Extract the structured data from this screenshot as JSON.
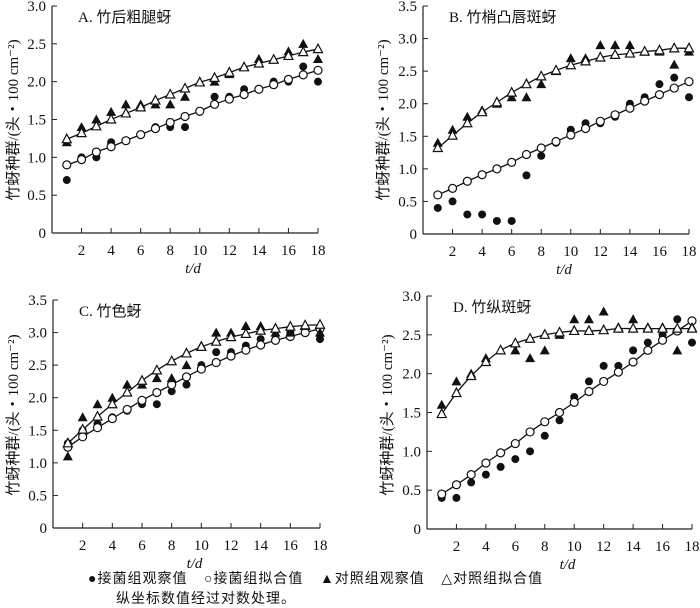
{
  "legend": {
    "items": [
      {
        "symbol": "●",
        "label": "接菌组观察值"
      },
      {
        "symbol": "○",
        "label": "接菌组拟合值"
      },
      {
        "symbol": "▲",
        "label": "对照组观察值"
      },
      {
        "symbol": "△",
        "label": "对照组拟合值"
      }
    ],
    "note": "纵坐标数值经过对数处理。"
  },
  "chart_data": [
    {
      "type": "scatter",
      "title": "A. 竹后粗腿蚜",
      "xlabel": "t/d",
      "ylabel": "竹蚜种群/(头・100 cm⁻²)",
      "xlim": [
        0,
        18
      ],
      "ylim": [
        0,
        3.0
      ],
      "xticks": [
        "2",
        "4",
        "6",
        "8",
        "10",
        "12",
        "14",
        "16",
        "18"
      ],
      "yticks": [
        "0",
        "0.5",
        "1.0",
        "1.5",
        "2.0",
        "2.5",
        "3.0"
      ],
      "x": [
        1,
        2,
        3,
        4,
        5,
        6,
        7,
        8,
        9,
        10,
        11,
        12,
        13,
        14,
        15,
        16,
        17,
        18
      ],
      "series": [
        {
          "name": "接菌组观察值",
          "marker": "filled-circle",
          "values": [
            0.7,
            1.0,
            1.0,
            1.2,
            1.22,
            1.3,
            1.4,
            1.4,
            1.4,
            1.6,
            1.8,
            1.8,
            1.9,
            1.9,
            2.0,
            2.0,
            2.2,
            2.0
          ]
        },
        {
          "name": "接菌组拟合值",
          "marker": "open-circle",
          "line": true,
          "values": [
            0.9,
            0.97,
            1.07,
            1.14,
            1.22,
            1.3,
            1.38,
            1.46,
            1.54,
            1.61,
            1.7,
            1.77,
            1.83,
            1.9,
            1.96,
            2.03,
            2.09,
            2.15
          ]
        },
        {
          "name": "对照组观察值",
          "marker": "filled-triangle",
          "values": [
            1.2,
            1.4,
            1.5,
            1.6,
            1.7,
            1.7,
            1.7,
            1.7,
            1.8,
            2.0,
            2.0,
            2.1,
            2.2,
            2.3,
            2.3,
            2.4,
            2.5,
            2.3
          ]
        },
        {
          "name": "对照组拟合值",
          "marker": "open-triangle",
          "line": true,
          "values": [
            1.24,
            1.32,
            1.41,
            1.5,
            1.58,
            1.66,
            1.75,
            1.83,
            1.91,
            1.99,
            2.05,
            2.12,
            2.19,
            2.24,
            2.29,
            2.34,
            2.39,
            2.43
          ]
        }
      ]
    },
    {
      "type": "scatter",
      "title": "B. 竹梢凸唇斑蚜",
      "xlabel": "t/d",
      "ylabel": "竹蚜种群/(头・100 cm⁻²)",
      "xlim": [
        0,
        18
      ],
      "ylim": [
        0,
        3.5
      ],
      "xticks": [
        "2",
        "4",
        "6",
        "8",
        "10",
        "12",
        "14",
        "16",
        "18"
      ],
      "yticks": [
        "0",
        "0.5",
        "1.0",
        "1.5",
        "2.0",
        "2.5",
        "3.0",
        "3.5"
      ],
      "x": [
        1,
        2,
        3,
        4,
        5,
        6,
        7,
        8,
        9,
        10,
        11,
        12,
        13,
        14,
        15,
        16,
        17,
        18
      ],
      "series": [
        {
          "name": "接菌组观察值",
          "marker": "filled-circle",
          "values": [
            0.4,
            0.5,
            0.3,
            0.3,
            0.2,
            0.2,
            0.9,
            1.2,
            1.4,
            1.6,
            1.7,
            1.7,
            1.8,
            2.0,
            2.1,
            2.3,
            2.4,
            2.1
          ]
        },
        {
          "name": "接菌组拟合值",
          "marker": "open-circle",
          "line": true,
          "values": [
            0.6,
            0.7,
            0.81,
            0.91,
            1.0,
            1.1,
            1.22,
            1.32,
            1.42,
            1.52,
            1.62,
            1.73,
            1.83,
            1.93,
            2.04,
            2.14,
            2.24,
            2.34
          ]
        },
        {
          "name": "对照组观察值",
          "marker": "filled-triangle",
          "values": [
            1.4,
            1.6,
            1.8,
            1.9,
            2.0,
            2.1,
            2.1,
            2.3,
            2.5,
            2.7,
            2.7,
            2.9,
            2.9,
            2.9,
            2.8,
            2.8,
            2.6,
            2.8
          ]
        },
        {
          "name": "对照组拟合值",
          "marker": "open-triangle",
          "line": true,
          "values": [
            1.32,
            1.51,
            1.7,
            1.87,
            2.02,
            2.17,
            2.3,
            2.42,
            2.51,
            2.59,
            2.65,
            2.71,
            2.75,
            2.77,
            2.8,
            2.82,
            2.85,
            2.85
          ]
        }
      ]
    },
    {
      "type": "scatter",
      "title": "C. 竹色蚜",
      "xlabel": "t/d",
      "ylabel": "竹蚜种群/(头・100 cm⁻²)",
      "xlim": [
        0,
        18
      ],
      "ylim": [
        0,
        3.5
      ],
      "xticks": [
        "2",
        "4",
        "6",
        "8",
        "10",
        "12",
        "14",
        "16",
        "18"
      ],
      "yticks": [
        "0",
        "0.5",
        "1.0",
        "1.5",
        "2.0",
        "2.5",
        "3.0",
        "3.5"
      ],
      "x": [
        1,
        2,
        3,
        4,
        5,
        6,
        7,
        8,
        9,
        10,
        11,
        12,
        13,
        14,
        15,
        16,
        17,
        18
      ],
      "series": [
        {
          "name": "接菌组观察值",
          "marker": "filled-circle",
          "values": [
            1.3,
            1.5,
            1.6,
            1.7,
            1.8,
            1.9,
            1.9,
            2.1,
            2.2,
            2.5,
            2.7,
            2.7,
            2.8,
            2.9,
            2.9,
            3.0,
            3.0,
            2.9
          ]
        },
        {
          "name": "接菌组拟合值",
          "marker": "open-circle",
          "line": true,
          "values": [
            1.24,
            1.4,
            1.54,
            1.68,
            1.82,
            1.96,
            2.08,
            2.2,
            2.32,
            2.44,
            2.54,
            2.64,
            2.73,
            2.81,
            2.88,
            2.94,
            3.0,
            3.06
          ]
        },
        {
          "name": "对照组观察值",
          "marker": "filled-triangle",
          "values": [
            1.1,
            1.7,
            1.9,
            2.0,
            2.2,
            2.2,
            2.3,
            2.3,
            2.5,
            2.8,
            3.0,
            3.0,
            3.1,
            3.1,
            3.0,
            3.0,
            3.1,
            3.0
          ]
        },
        {
          "name": "对照组拟合值",
          "marker": "open-triangle",
          "line": true,
          "values": [
            1.3,
            1.51,
            1.71,
            1.9,
            2.08,
            2.26,
            2.42,
            2.56,
            2.68,
            2.78,
            2.86,
            2.93,
            2.98,
            3.03,
            3.06,
            3.09,
            3.11,
            3.12
          ]
        }
      ]
    },
    {
      "type": "scatter",
      "title": "D. 竹纵斑蚜",
      "xlabel": "t/d",
      "ylabel": "竹蚜种群/(头・100 cm⁻²)",
      "xlim": [
        0,
        18
      ],
      "ylim": [
        0,
        3.0
      ],
      "xticks": [
        "2",
        "4",
        "6",
        "8",
        "10",
        "12",
        "14",
        "16",
        "18"
      ],
      "yticks": [
        "0",
        "0.5",
        "1.0",
        "1.5",
        "2.0",
        "2.5",
        "3.0"
      ],
      "x": [
        1,
        2,
        3,
        4,
        5,
        6,
        7,
        8,
        9,
        10,
        11,
        12,
        13,
        14,
        15,
        16,
        17,
        18
      ],
      "series": [
        {
          "name": "接菌组观察值",
          "marker": "filled-circle",
          "values": [
            0.4,
            0.4,
            0.6,
            0.7,
            0.8,
            0.9,
            1.0,
            1.2,
            1.4,
            1.7,
            1.9,
            2.1,
            2.1,
            2.3,
            2.4,
            2.5,
            2.7,
            2.4
          ]
        },
        {
          "name": "接菌组拟合值",
          "marker": "open-circle",
          "line": true,
          "values": [
            0.45,
            0.57,
            0.7,
            0.85,
            0.98,
            1.1,
            1.25,
            1.38,
            1.5,
            1.63,
            1.77,
            1.9,
            2.02,
            2.15,
            2.3,
            2.43,
            2.55,
            2.68
          ]
        },
        {
          "name": "对照组观察值",
          "marker": "filled-triangle",
          "values": [
            1.6,
            1.9,
            2.0,
            2.2,
            2.3,
            2.3,
            2.2,
            2.3,
            2.5,
            2.7,
            2.7,
            2.8,
            2.6,
            2.7,
            2.6,
            2.6,
            2.3,
            2.6
          ]
        },
        {
          "name": "对照组拟合值",
          "marker": "open-triangle",
          "line": true,
          "values": [
            1.48,
            1.75,
            1.97,
            2.15,
            2.3,
            2.39,
            2.45,
            2.5,
            2.53,
            2.55,
            2.55,
            2.56,
            2.58,
            2.58,
            2.58,
            2.58,
            2.58,
            2.58
          ]
        }
      ]
    }
  ]
}
